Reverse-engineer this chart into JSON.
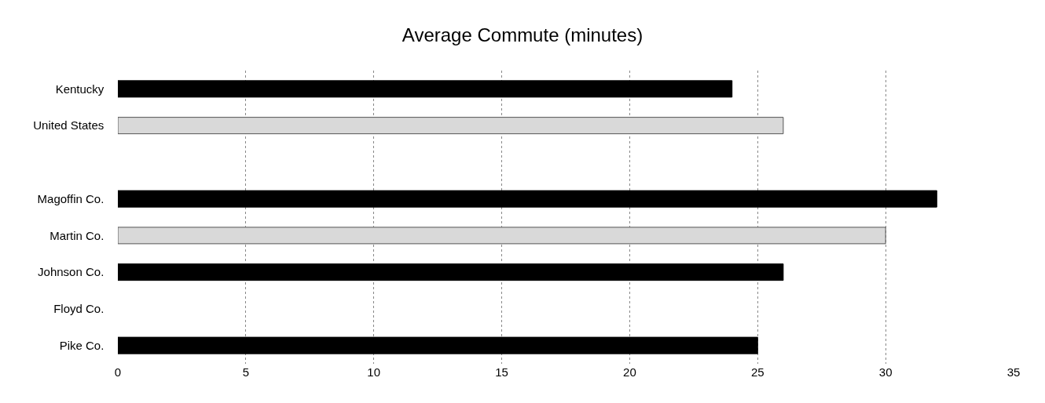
{
  "chart_data": {
    "type": "bar",
    "orientation": "horizontal",
    "title": "Average Commute (minutes)",
    "categories": [
      "Kentucky",
      "United States",
      null,
      "Magoffin Co.",
      "Martin Co.",
      "Johnson Co.",
      "Floyd Co.",
      "Pike Co."
    ],
    "values": [
      24,
      26,
      null,
      32,
      30,
      26,
      null,
      25
    ],
    "colors": [
      "#000000",
      "#d9d9d9",
      "#000000",
      "#000000",
      "#d9d9d9",
      "#000000",
      "#000000",
      "#000000"
    ],
    "xlim": [
      0,
      35
    ],
    "xticks": [
      0,
      5,
      10,
      15,
      20,
      25,
      30,
      35
    ],
    "grid": "x"
  }
}
